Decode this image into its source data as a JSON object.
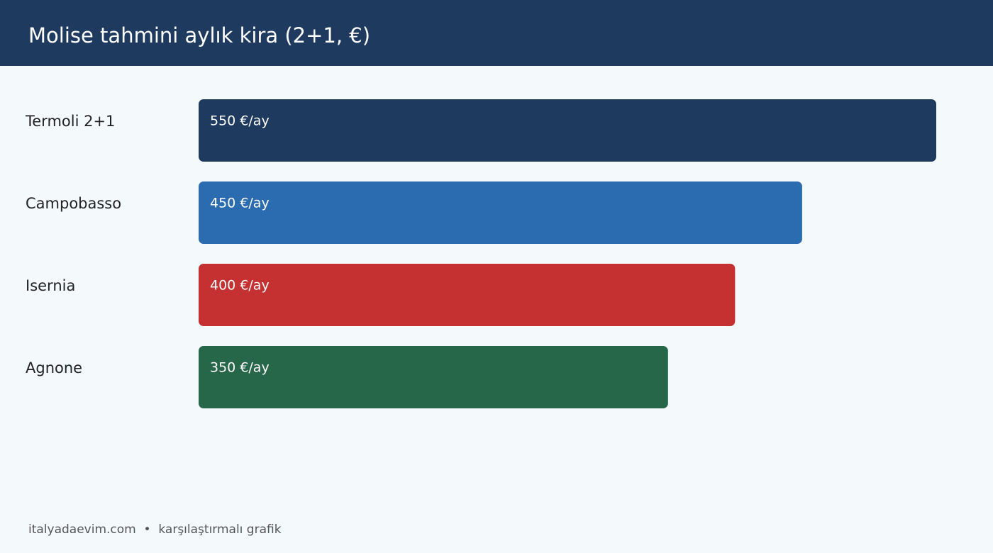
{
  "chart_data": {
    "type": "bar",
    "orientation": "horizontal",
    "title": "Molise tahmini aylık kira (2+1, €)",
    "categories": [
      "Termoli 2+1",
      "Campobasso",
      "Isernia",
      "Agnone"
    ],
    "values": [
      550,
      450,
      400,
      350
    ],
    "value_labels": [
      "550 €/ay",
      "450 €/ay",
      "400 €/ay",
      "350 €/ay"
    ],
    "colors": [
      "#1f3a5f",
      "#2b6cb0",
      "#c53030",
      "#276749"
    ],
    "footer": "italyadaevim.com  •  karşılaştırmalı grafik"
  }
}
